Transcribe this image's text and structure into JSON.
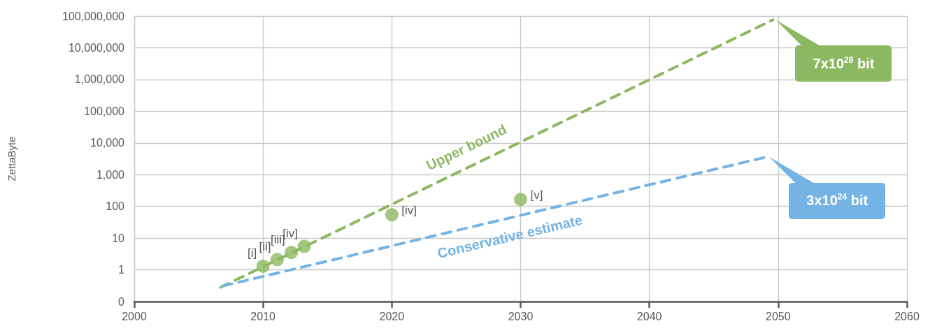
{
  "chart_data": {
    "type": "line",
    "ylabel": "ZettaByte",
    "log": "y",
    "grid": true,
    "legend": false,
    "line_style": "dashed",
    "marker": "none",
    "xlim": [
      2000,
      2060
    ],
    "xticks": [
      2000,
      2010,
      2020,
      2030,
      2040,
      2050,
      2060
    ],
    "ylim": [
      0.1,
      100000000
    ],
    "yticks": [
      {
        "value": 0.1,
        "label": "0"
      },
      {
        "value": 1,
        "label": "1"
      },
      {
        "value": 10,
        "label": "10"
      },
      {
        "value": 100,
        "label": "100"
      },
      {
        "value": 1000,
        "label": "1,000"
      },
      {
        "value": 10000,
        "label": "10,000"
      },
      {
        "value": 100000,
        "label": "100,000"
      },
      {
        "value": 1000000,
        "label": "1,000,000"
      },
      {
        "value": 10000000,
        "label": "10,000,000"
      },
      {
        "value": 100000000,
        "label": "100,000,000"
      }
    ],
    "series": [
      {
        "name": "Upper bound",
        "type": "line",
        "color": "#8cb862",
        "x": [
          2006.7,
          2049.6
        ],
        "values": [
          0.28,
          76000000
        ]
      },
      {
        "name": "Conservative estimate",
        "type": "line",
        "color": "#74b3e3",
        "x": [
          2006.9,
          2049.1
        ],
        "values": [
          0.31,
          3600
        ]
      },
      {
        "type": "scatter",
        "marker": "circle",
        "color": "#8cb862",
        "x": [
          2010,
          2011.1,
          2012.2,
          2013.2
        ],
        "values": [
          1.3,
          2.1,
          3.5,
          5.5
        ]
      },
      {
        "type": "scatter",
        "marker": "circle",
        "color": "#8cb862",
        "x": [
          2020,
          2030
        ],
        "values": [
          54,
          165
        ]
      }
    ],
    "annotations": [
      {
        "text": "[i]",
        "x": 2010,
        "y": 1.3
      },
      {
        "text": "[ii]",
        "x": 2011.1,
        "y": 2.1
      },
      {
        "text": "[iii]",
        "x": 2012.2,
        "y": 3.5
      },
      {
        "text": "[iv]",
        "x": 2013.2,
        "y": 5.5
      },
      {
        "text": "[iv]",
        "x": 2020,
        "y": 54
      },
      {
        "text": "[v]",
        "x": 2030,
        "y": 165
      },
      "7x10$^{28}$ bit",
      "3x10$^{24}$ bit"
    ]
  }
}
